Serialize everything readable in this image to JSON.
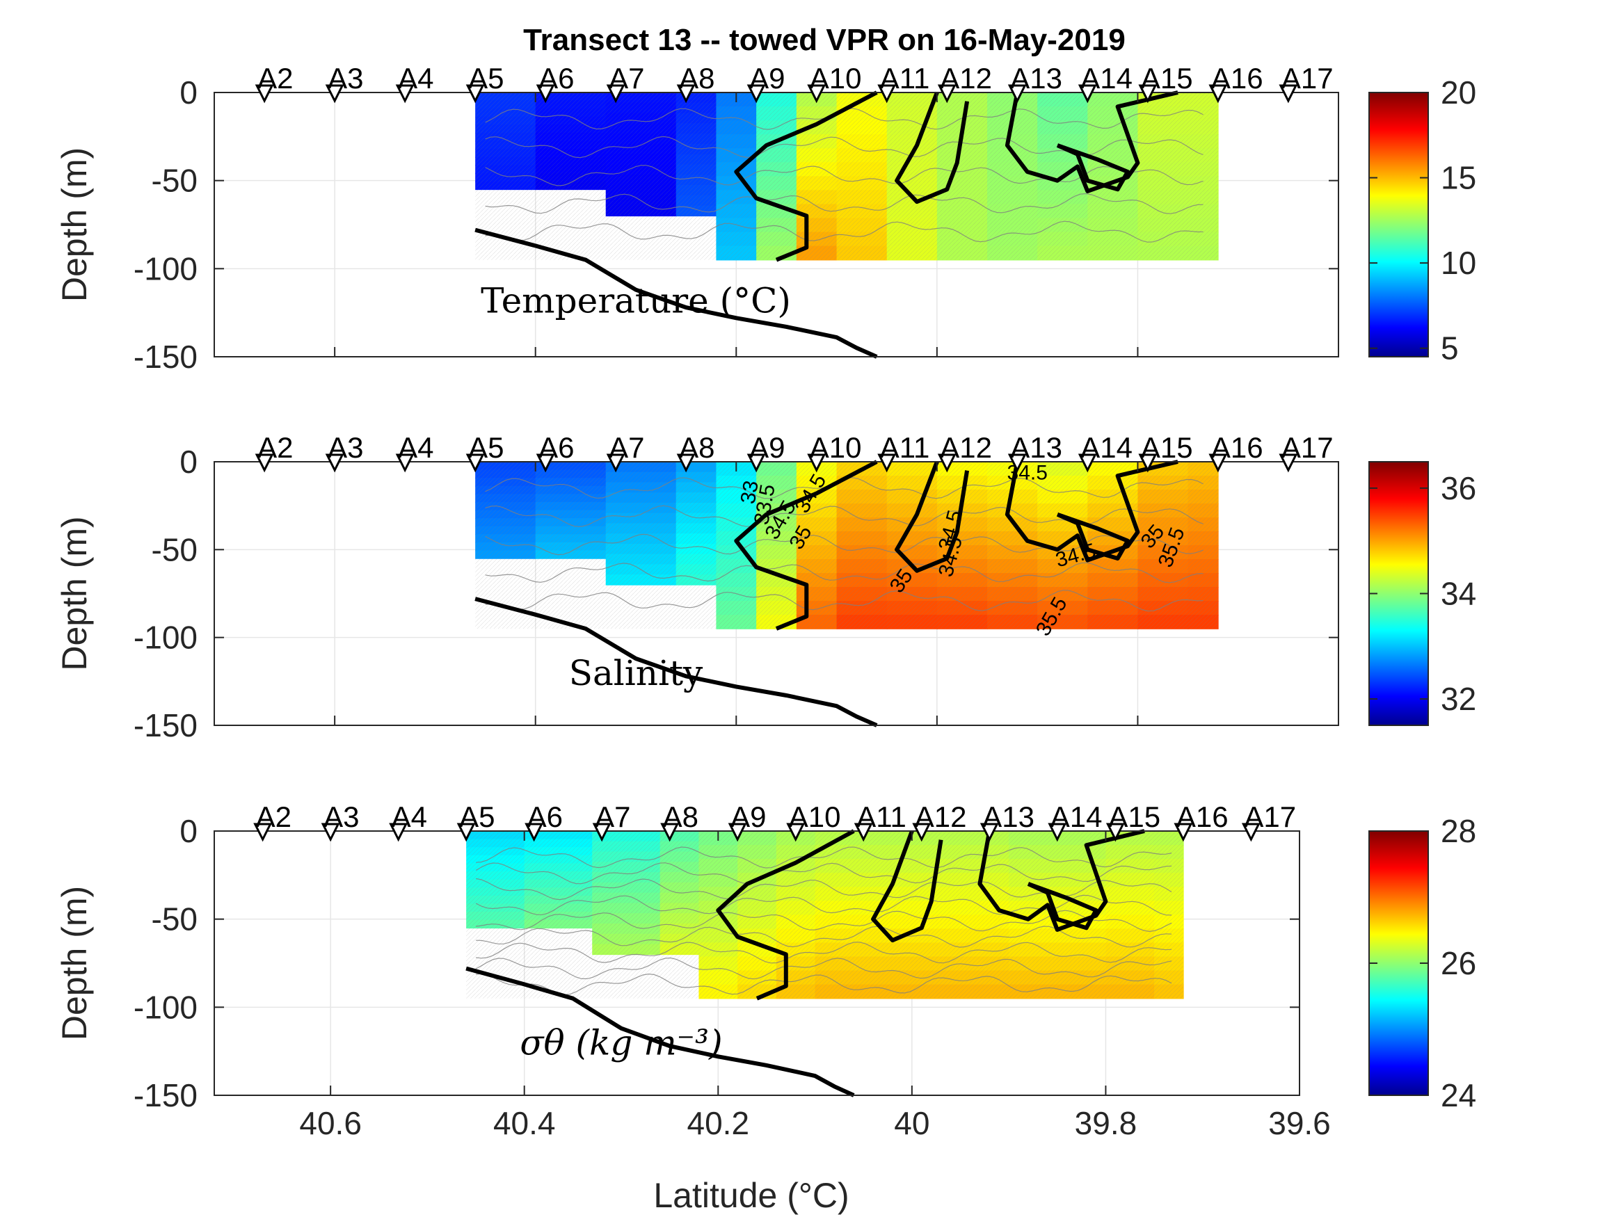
{
  "title": "Transect 13 -- towed VPR on 16-May-2019",
  "xlabel": "Latitude (°C)",
  "colors": {
    "bottom_line": "#000000",
    "contour_gray": "#808080",
    "frame": "#262626"
  },
  "chart_data": [
    {
      "type": "heatmap",
      "panel_label": "Temperature (°C)",
      "ylabel": "Depth (m)",
      "xlabel": "",
      "xlim": [
        40.72,
        39.6
      ],
      "ylim": [
        -150,
        0
      ],
      "yticks": [
        "0",
        "-50",
        "-100",
        "-150"
      ],
      "xticks": [],
      "colorbar": {
        "range": [
          4.5,
          20
        ],
        "ticks": [
          "5",
          "10",
          "15",
          "20"
        ],
        "colormap": "jet"
      },
      "stations": [
        "A2",
        "A3",
        "A4",
        "A5",
        "A6",
        "A7",
        "A8",
        "A9",
        "A10",
        "A11",
        "A12",
        "A13",
        "A14",
        "A15",
        "A16",
        "A17"
      ],
      "station_lat": [
        40.67,
        40.6,
        40.53,
        40.46,
        40.39,
        40.32,
        40.25,
        40.18,
        40.12,
        40.05,
        39.99,
        39.92,
        39.85,
        39.79,
        39.72,
        39.65
      ],
      "data_extent": {
        "lat": [
          40.46,
          39.72
        ],
        "depth": [
          0,
          -95
        ]
      },
      "profile_columns": [
        {
          "lat": 40.46,
          "surface": 7.5,
          "bottom": 7.0
        },
        {
          "lat": 40.4,
          "surface": 7.0,
          "bottom": 6.5
        },
        {
          "lat": 40.33,
          "surface": 6.5,
          "bottom": 6.0
        },
        {
          "lat": 40.26,
          "surface": 6.8,
          "bottom": 6.5
        },
        {
          "lat": 40.22,
          "surface": 7.0,
          "bottom": 9.0
        },
        {
          "lat": 40.18,
          "surface": 9.5,
          "bottom": 10.0
        },
        {
          "lat": 40.14,
          "surface": 12.0,
          "bottom": 15.5
        },
        {
          "lat": 40.1,
          "surface": 14.0,
          "bottom": 16.0
        },
        {
          "lat": 40.05,
          "surface": 14.0,
          "bottom": 14.0
        },
        {
          "lat": 40.0,
          "surface": 13.0,
          "bottom": 13.5
        },
        {
          "lat": 39.95,
          "surface": 13.0,
          "bottom": 12.5
        },
        {
          "lat": 39.9,
          "surface": 12.0,
          "bottom": 13.0
        },
        {
          "lat": 39.85,
          "surface": 11.5,
          "bottom": 13.0
        },
        {
          "lat": 39.8,
          "surface": 13.5,
          "bottom": 13.0
        },
        {
          "lat": 39.75,
          "surface": 13.5,
          "bottom": 13.0
        },
        {
          "lat": 39.72,
          "surface": 13.5,
          "bottom": 13.0
        }
      ],
      "bottom_profile": {
        "lat": [
          40.46,
          40.4,
          40.35,
          40.3,
          40.25,
          40.2,
          40.15,
          40.1,
          40.08,
          40.06
        ],
        "depth": [
          -78,
          -87,
          -95,
          -112,
          -122,
          -128,
          -133,
          -139,
          -145,
          -150
        ]
      },
      "contour_labels": []
    },
    {
      "type": "heatmap",
      "panel_label": "Salinity",
      "ylabel": "Depth (m)",
      "xlabel": "",
      "xlim": [
        40.72,
        39.6
      ],
      "ylim": [
        -150,
        0
      ],
      "yticks": [
        "0",
        "-50",
        "-100",
        "-150"
      ],
      "xticks": [],
      "colorbar": {
        "range": [
          31.5,
          36.5
        ],
        "ticks": [
          "32",
          "34",
          "36"
        ],
        "colormap": "jet"
      },
      "stations": [
        "A2",
        "A3",
        "A4",
        "A5",
        "A6",
        "A7",
        "A8",
        "A9",
        "A10",
        "A11",
        "A12",
        "A13",
        "A14",
        "A15",
        "A16",
        "A17"
      ],
      "station_lat": [
        40.67,
        40.6,
        40.53,
        40.46,
        40.39,
        40.32,
        40.25,
        40.18,
        40.12,
        40.05,
        39.99,
        39.92,
        39.85,
        39.79,
        39.72,
        39.65
      ],
      "data_extent": {
        "lat": [
          40.46,
          39.72
        ],
        "depth": [
          0,
          -95
        ]
      },
      "profile_columns": [
        {
          "lat": 40.46,
          "surface": 32.5,
          "bottom": 32.8
        },
        {
          "lat": 40.4,
          "surface": 32.4,
          "bottom": 33.0
        },
        {
          "lat": 40.33,
          "surface": 32.6,
          "bottom": 33.2
        },
        {
          "lat": 40.26,
          "surface": 32.8,
          "bottom": 33.4
        },
        {
          "lat": 40.22,
          "surface": 33.0,
          "bottom": 33.8
        },
        {
          "lat": 40.18,
          "surface": 33.5,
          "bottom": 34.0
        },
        {
          "lat": 40.14,
          "surface": 34.3,
          "bottom": 35.2
        },
        {
          "lat": 40.1,
          "surface": 34.8,
          "bottom": 35.6
        },
        {
          "lat": 40.05,
          "surface": 34.8,
          "bottom": 35.6
        },
        {
          "lat": 40.0,
          "surface": 34.6,
          "bottom": 35.6
        },
        {
          "lat": 39.95,
          "surface": 34.6,
          "bottom": 35.6
        },
        {
          "lat": 39.9,
          "surface": 34.5,
          "bottom": 35.5
        },
        {
          "lat": 39.85,
          "surface": 34.4,
          "bottom": 35.5
        },
        {
          "lat": 39.8,
          "surface": 34.8,
          "bottom": 35.6
        },
        {
          "lat": 39.75,
          "surface": 34.9,
          "bottom": 35.6
        },
        {
          "lat": 39.72,
          "surface": 34.9,
          "bottom": 35.6
        }
      ],
      "bottom_profile": {
        "lat": [
          40.46,
          40.4,
          40.35,
          40.3,
          40.25,
          40.2,
          40.15,
          40.1,
          40.08,
          40.06
        ],
        "depth": [
          -78,
          -87,
          -95,
          -112,
          -122,
          -128,
          -133,
          -139,
          -145,
          -150
        ]
      },
      "contour_labels": [
        {
          "text": "33",
          "lat": 40.18,
          "depth": -18,
          "angle": -80
        },
        {
          "text": "33.5",
          "lat": 40.165,
          "depth": -25,
          "angle": -80
        },
        {
          "text": "34.5",
          "lat": 40.15,
          "depth": -35,
          "angle": -60
        },
        {
          "text": "34.5",
          "lat": 40.12,
          "depth": -20,
          "angle": -60
        },
        {
          "text": "35",
          "lat": 40.13,
          "depth": -45,
          "angle": -60
        },
        {
          "text": "34.5",
          "lat": 39.91,
          "depth": -10,
          "angle": 0
        },
        {
          "text": "34.5",
          "lat": 39.98,
          "depth": -40,
          "angle": -75
        },
        {
          "text": "34.5",
          "lat": 39.98,
          "depth": -55,
          "angle": -75
        },
        {
          "text": "35",
          "lat": 40.03,
          "depth": -70,
          "angle": -55
        },
        {
          "text": "34.5",
          "lat": 39.86,
          "depth": -57,
          "angle": -15
        },
        {
          "text": "35",
          "lat": 39.78,
          "depth": -45,
          "angle": -50
        },
        {
          "text": "35.5",
          "lat": 39.76,
          "depth": -50,
          "angle": -70
        },
        {
          "text": "35.5",
          "lat": 39.88,
          "depth": -90,
          "angle": -60
        }
      ]
    },
    {
      "type": "heatmap",
      "panel_label": "σθ (kg m⁻³)",
      "ylabel": "Depth (m)",
      "xlabel": "Latitude (°C)",
      "xlim": [
        40.72,
        39.6
      ],
      "ylim": [
        -150,
        0
      ],
      "yticks": [
        "0",
        "-50",
        "-100",
        "-150"
      ],
      "xticks": [
        "40.6",
        "40.4",
        "40.2",
        "40",
        "39.8",
        "39.6"
      ],
      "colorbar": {
        "range": [
          24,
          28
        ],
        "ticks": [
          "24",
          "26",
          "28"
        ],
        "colormap": "jet"
      },
      "stations": [
        "A2",
        "A3",
        "A4",
        "A5",
        "A6",
        "A7",
        "A8",
        "A9",
        "A10",
        "A11",
        "A12",
        "A13",
        "A14",
        "A15",
        "A16",
        "A17"
      ],
      "station_lat": [
        40.67,
        40.6,
        40.53,
        40.46,
        40.39,
        40.32,
        40.25,
        40.18,
        40.12,
        40.05,
        39.99,
        39.92,
        39.85,
        39.79,
        39.72,
        39.65
      ],
      "data_extent": {
        "lat": [
          40.46,
          39.72
        ],
        "depth": [
          0,
          -95
        ]
      },
      "profile_columns": [
        {
          "lat": 40.46,
          "surface": 25.4,
          "bottom": 25.8
        },
        {
          "lat": 40.4,
          "surface": 25.3,
          "bottom": 25.9
        },
        {
          "lat": 40.33,
          "surface": 25.5,
          "bottom": 26.1
        },
        {
          "lat": 40.26,
          "surface": 25.7,
          "bottom": 26.3
        },
        {
          "lat": 40.22,
          "surface": 25.9,
          "bottom": 26.5
        },
        {
          "lat": 40.18,
          "surface": 26.0,
          "bottom": 26.6
        },
        {
          "lat": 40.14,
          "surface": 26.1,
          "bottom": 26.7
        },
        {
          "lat": 40.1,
          "surface": 26.2,
          "bottom": 26.8
        },
        {
          "lat": 40.05,
          "surface": 26.2,
          "bottom": 26.8
        },
        {
          "lat": 40.0,
          "surface": 26.2,
          "bottom": 26.8
        },
        {
          "lat": 39.95,
          "surface": 26.2,
          "bottom": 26.8
        },
        {
          "lat": 39.9,
          "surface": 26.2,
          "bottom": 26.8
        },
        {
          "lat": 39.85,
          "surface": 26.1,
          "bottom": 26.8
        },
        {
          "lat": 39.8,
          "surface": 26.2,
          "bottom": 26.8
        },
        {
          "lat": 39.75,
          "surface": 26.2,
          "bottom": 26.8
        },
        {
          "lat": 39.72,
          "surface": 26.2,
          "bottom": 26.7
        }
      ],
      "bottom_profile": {
        "lat": [
          40.46,
          40.4,
          40.35,
          40.3,
          40.25,
          40.2,
          40.15,
          40.1,
          40.08,
          40.06
        ],
        "depth": [
          -78,
          -87,
          -95,
          -112,
          -122,
          -128,
          -133,
          -139,
          -145,
          -150
        ]
      },
      "contour_labels": []
    }
  ]
}
